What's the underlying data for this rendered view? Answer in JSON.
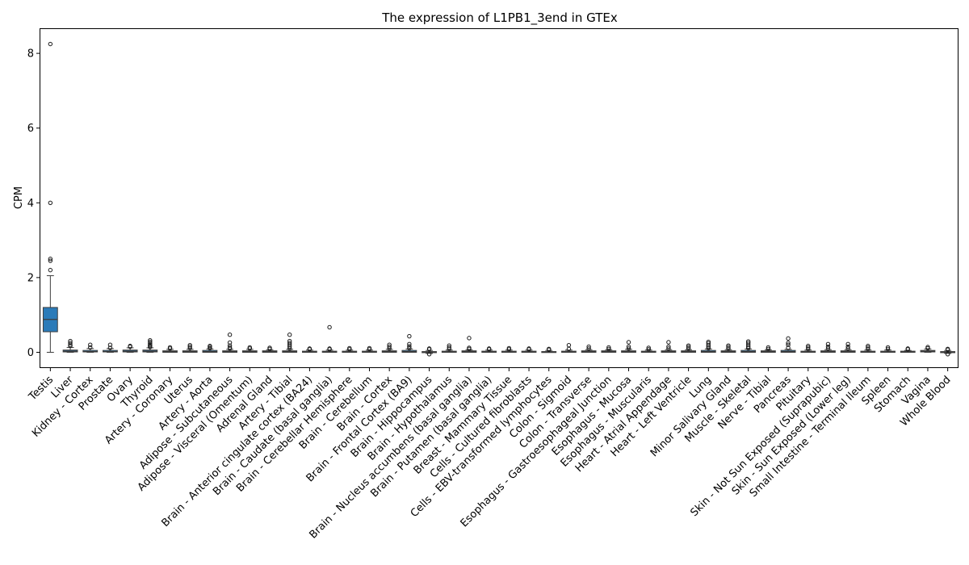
{
  "chart_data": {
    "type": "box",
    "title": "The expression of L1PB1_3end in GTEx",
    "xlabel": "",
    "ylabel": "CPM",
    "ylim": [
      -0.4,
      8.65
    ],
    "yticks": [
      0,
      2,
      4,
      6,
      8
    ],
    "box_color": "#2b7bb9",
    "grid": false,
    "categories": [
      "Testis",
      "Liver",
      "Kidney - Cortex",
      "Prostate",
      "Ovary",
      "Thyroid",
      "Artery - Coronary",
      "Uterus",
      "Artery - Aorta",
      "Adipose - Subcutaneous",
      "Adipose - Visceral (Omentum)",
      "Adrenal Gland",
      "Artery - Tibial",
      "Brain - Anterior cingulate cortex (BA24)",
      "Brain - Caudate (basal ganglia)",
      "Brain - Cerebellar Hemisphere",
      "Brain - Cerebellum",
      "Brain - Cortex",
      "Brain - Frontal Cortex (BA9)",
      "Brain - Hippocampus",
      "Brain - Hypothalamus",
      "Brain - Nucleus accumbens (basal ganglia)",
      "Brain - Putamen (basal ganglia)",
      "Breast - Mammary Tissue",
      "Cells - Cultured fibroblasts",
      "Cells - EBV-transformed lymphocytes",
      "Colon - Sigmoid",
      "Colon - Transverse",
      "Esophagus - Gastroesophageal Junction",
      "Esophagus - Mucosa",
      "Esophagus - Muscularis",
      "Heart - Atrial Appendage",
      "Heart - Left Ventricle",
      "Lung",
      "Minor Salivary Gland",
      "Muscle - Skeletal",
      "Nerve - Tibial",
      "Pancreas",
      "Pituitary",
      "Skin - Not Sun Exposed (Suprapubic)",
      "Skin - Sun Exposed (Lower leg)",
      "Small Intestine - Terminal Ileum",
      "Spleen",
      "Stomach",
      "Vagina",
      "Whole Blood"
    ],
    "boxes": [
      {
        "q1": 0.55,
        "median": 0.88,
        "q3": 1.2,
        "whislo": 0.0,
        "whishi": 2.05,
        "fliers": [
          2.2,
          2.45,
          2.5,
          4.0,
          8.25
        ]
      },
      {
        "q1": 0.01,
        "median": 0.03,
        "q3": 0.06,
        "whislo": 0.0,
        "whishi": 0.13,
        "fliers": [
          0.17,
          0.2,
          0.25,
          0.3
        ]
      },
      {
        "q1": 0.01,
        "median": 0.02,
        "q3": 0.05,
        "whislo": 0.0,
        "whishi": 0.1,
        "fliers": [
          0.13,
          0.2
        ]
      },
      {
        "q1": 0.01,
        "median": 0.02,
        "q3": 0.05,
        "whislo": 0.0,
        "whishi": 0.1,
        "fliers": [
          0.12,
          0.2
        ]
      },
      {
        "q1": 0.01,
        "median": 0.03,
        "q3": 0.06,
        "whislo": 0.0,
        "whishi": 0.12,
        "fliers": [
          0.15,
          0.17
        ]
      },
      {
        "q1": 0.01,
        "median": 0.03,
        "q3": 0.06,
        "whislo": 0.0,
        "whishi": 0.12,
        "fliers": [
          0.14,
          0.17,
          0.2,
          0.24,
          0.28,
          0.32
        ]
      },
      {
        "q1": 0.0,
        "median": 0.02,
        "q3": 0.04,
        "whislo": 0.0,
        "whishi": 0.08,
        "fliers": [
          0.1,
          0.13
        ]
      },
      {
        "q1": 0.0,
        "median": 0.02,
        "q3": 0.04,
        "whislo": 0.0,
        "whishi": 0.08,
        "fliers": [
          0.11,
          0.15,
          0.19
        ]
      },
      {
        "q1": 0.0,
        "median": 0.02,
        "q3": 0.05,
        "whislo": 0.0,
        "whishi": 0.09,
        "fliers": [
          0.11,
          0.14,
          0.17
        ]
      },
      {
        "q1": 0.0,
        "median": 0.02,
        "q3": 0.04,
        "whislo": 0.0,
        "whishi": 0.08,
        "fliers": [
          0.1,
          0.13,
          0.18,
          0.26,
          0.47
        ]
      },
      {
        "q1": 0.0,
        "median": 0.02,
        "q3": 0.04,
        "whislo": 0.0,
        "whishi": 0.08,
        "fliers": [
          0.1,
          0.13
        ]
      },
      {
        "q1": 0.0,
        "median": 0.02,
        "q3": 0.04,
        "whislo": 0.0,
        "whishi": 0.07,
        "fliers": [
          0.09,
          0.12
        ]
      },
      {
        "q1": 0.0,
        "median": 0.02,
        "q3": 0.04,
        "whislo": 0.0,
        "whishi": 0.08,
        "fliers": [
          0.1,
          0.15,
          0.2,
          0.25,
          0.3,
          0.47
        ]
      },
      {
        "q1": 0.0,
        "median": 0.01,
        "q3": 0.03,
        "whislo": 0.0,
        "whishi": 0.06,
        "fliers": [
          0.08,
          0.1
        ]
      },
      {
        "q1": 0.0,
        "median": 0.01,
        "q3": 0.03,
        "whislo": 0.0,
        "whishi": 0.06,
        "fliers": [
          0.08,
          0.1,
          0.67
        ]
      },
      {
        "q1": 0.0,
        "median": 0.01,
        "q3": 0.03,
        "whislo": 0.0,
        "whishi": 0.06,
        "fliers": [
          0.08,
          0.11
        ]
      },
      {
        "q1": 0.0,
        "median": 0.01,
        "q3": 0.03,
        "whislo": 0.0,
        "whishi": 0.06,
        "fliers": [
          0.08,
          0.11
        ]
      },
      {
        "q1": 0.0,
        "median": 0.02,
        "q3": 0.04,
        "whislo": 0.0,
        "whishi": 0.08,
        "fliers": [
          0.1,
          0.15,
          0.2
        ]
      },
      {
        "q1": 0.0,
        "median": 0.02,
        "q3": 0.05,
        "whislo": 0.0,
        "whishi": 0.09,
        "fliers": [
          0.11,
          0.16,
          0.22,
          0.43
        ]
      },
      {
        "q1": -0.01,
        "median": 0.0,
        "q3": 0.02,
        "whislo": -0.03,
        "whishi": 0.05,
        "fliers": [
          0.08,
          0.1,
          -0.05
        ]
      },
      {
        "q1": 0.0,
        "median": 0.01,
        "q3": 0.03,
        "whislo": 0.0,
        "whishi": 0.06,
        "fliers": [
          0.09,
          0.13,
          0.18
        ]
      },
      {
        "q1": 0.0,
        "median": 0.02,
        "q3": 0.04,
        "whislo": 0.0,
        "whishi": 0.07,
        "fliers": [
          0.09,
          0.12,
          0.38
        ]
      },
      {
        "q1": 0.0,
        "median": 0.01,
        "q3": 0.03,
        "whislo": 0.0,
        "whishi": 0.06,
        "fliers": [
          0.08,
          0.1
        ]
      },
      {
        "q1": 0.0,
        "median": 0.01,
        "q3": 0.03,
        "whislo": 0.0,
        "whishi": 0.06,
        "fliers": [
          0.08,
          0.11
        ]
      },
      {
        "q1": 0.0,
        "median": 0.01,
        "q3": 0.03,
        "whislo": 0.0,
        "whishi": 0.06,
        "fliers": [
          0.08,
          0.1
        ]
      },
      {
        "q1": 0.0,
        "median": 0.01,
        "q3": 0.02,
        "whislo": 0.0,
        "whishi": 0.05,
        "fliers": [
          0.07,
          0.09
        ]
      },
      {
        "q1": 0.0,
        "median": 0.01,
        "q3": 0.03,
        "whislo": 0.0,
        "whishi": 0.06,
        "fliers": [
          0.09,
          0.19
        ]
      },
      {
        "q1": 0.0,
        "median": 0.02,
        "q3": 0.04,
        "whislo": 0.0,
        "whishi": 0.07,
        "fliers": [
          0.1,
          0.15
        ]
      },
      {
        "q1": 0.0,
        "median": 0.02,
        "q3": 0.04,
        "whislo": 0.0,
        "whishi": 0.07,
        "fliers": [
          0.09,
          0.13
        ]
      },
      {
        "q1": 0.0,
        "median": 0.02,
        "q3": 0.04,
        "whislo": 0.0,
        "whishi": 0.08,
        "fliers": [
          0.1,
          0.15,
          0.27
        ]
      },
      {
        "q1": 0.0,
        "median": 0.01,
        "q3": 0.03,
        "whislo": 0.0,
        "whishi": 0.06,
        "fliers": [
          0.08,
          0.12
        ]
      },
      {
        "q1": 0.0,
        "median": 0.02,
        "q3": 0.04,
        "whislo": 0.0,
        "whishi": 0.07,
        "fliers": [
          0.1,
          0.15,
          0.27
        ]
      },
      {
        "q1": 0.0,
        "median": 0.02,
        "q3": 0.04,
        "whislo": 0.0,
        "whishi": 0.07,
        "fliers": [
          0.1,
          0.14,
          0.18
        ]
      },
      {
        "q1": 0.0,
        "median": 0.02,
        "q3": 0.05,
        "whislo": 0.0,
        "whishi": 0.09,
        "fliers": [
          0.11,
          0.15,
          0.19,
          0.24,
          0.28
        ]
      },
      {
        "q1": 0.0,
        "median": 0.02,
        "q3": 0.04,
        "whislo": 0.0,
        "whishi": 0.07,
        "fliers": [
          0.1,
          0.14,
          0.18
        ]
      },
      {
        "q1": 0.0,
        "median": 0.02,
        "q3": 0.05,
        "whislo": 0.0,
        "whishi": 0.09,
        "fliers": [
          0.11,
          0.15,
          0.2,
          0.25,
          0.29
        ]
      },
      {
        "q1": 0.0,
        "median": 0.02,
        "q3": 0.04,
        "whislo": 0.0,
        "whishi": 0.07,
        "fliers": [
          0.09,
          0.13
        ]
      },
      {
        "q1": 0.0,
        "median": 0.02,
        "q3": 0.05,
        "whislo": 0.0,
        "whishi": 0.08,
        "fliers": [
          0.12,
          0.2,
          0.25,
          0.37
        ]
      },
      {
        "q1": 0.0,
        "median": 0.01,
        "q3": 0.03,
        "whislo": 0.0,
        "whishi": 0.06,
        "fliers": [
          0.09,
          0.13,
          0.17
        ]
      },
      {
        "q1": 0.0,
        "median": 0.02,
        "q3": 0.04,
        "whislo": 0.0,
        "whishi": 0.07,
        "fliers": [
          0.1,
          0.15,
          0.22
        ]
      },
      {
        "q1": 0.0,
        "median": 0.02,
        "q3": 0.04,
        "whislo": 0.0,
        "whishi": 0.07,
        "fliers": [
          0.1,
          0.15,
          0.22
        ]
      },
      {
        "q1": 0.0,
        "median": 0.01,
        "q3": 0.03,
        "whislo": 0.0,
        "whishi": 0.06,
        "fliers": [
          0.09,
          0.13,
          0.17
        ]
      },
      {
        "q1": 0.0,
        "median": 0.01,
        "q3": 0.03,
        "whislo": 0.0,
        "whishi": 0.06,
        "fliers": [
          0.09,
          0.13
        ]
      },
      {
        "q1": 0.0,
        "median": 0.01,
        "q3": 0.03,
        "whislo": 0.0,
        "whishi": 0.05,
        "fliers": [
          0.08,
          0.1
        ]
      },
      {
        "q1": 0.01,
        "median": 0.03,
        "q3": 0.05,
        "whislo": 0.0,
        "whishi": 0.09,
        "fliers": [
          0.11,
          0.14
        ]
      },
      {
        "q1": -0.01,
        "median": 0.0,
        "q3": 0.02,
        "whislo": -0.03,
        "whishi": 0.05,
        "fliers": [
          0.07,
          0.09,
          -0.05
        ]
      }
    ]
  }
}
